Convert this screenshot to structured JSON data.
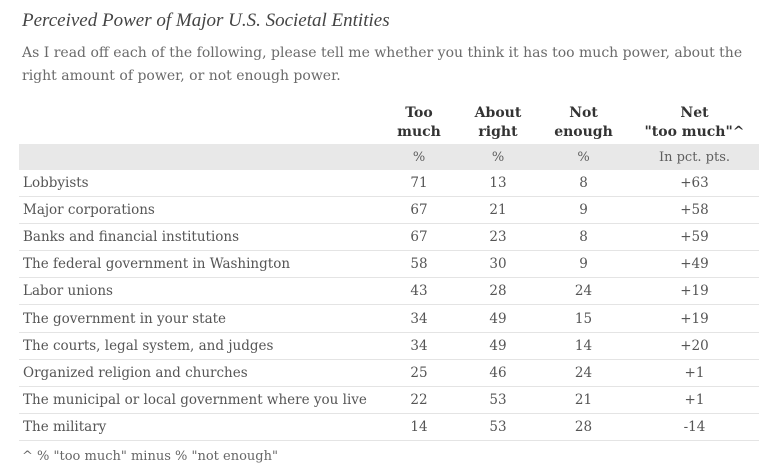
{
  "title": "Perceived Power of Major U.S. Societal Entities",
  "subtitle": "As I read off each of the following, please tell me whether you think it has too much power, about the right amount of power, or not enough power.",
  "columns": [
    {
      "line1": "Too",
      "line2": "much",
      "unit": "%"
    },
    {
      "line1": "About",
      "line2": "right",
      "unit": "%"
    },
    {
      "line1": "Not",
      "line2": "enough",
      "unit": "%"
    },
    {
      "line1": "Net",
      "line2": "\"too much\"^",
      "unit": "In pct. pts."
    }
  ],
  "rows": [
    {
      "entity": "Lobbyists",
      "too_much": "71",
      "about_right": "13",
      "not_enough": "8",
      "net": "+63"
    },
    {
      "entity": "Major corporations",
      "too_much": "67",
      "about_right": "21",
      "not_enough": "9",
      "net": "+58"
    },
    {
      "entity": "Banks and financial institutions",
      "too_much": "67",
      "about_right": "23",
      "not_enough": "8",
      "net": "+59"
    },
    {
      "entity": "The federal government in Washington",
      "too_much": "58",
      "about_right": "30",
      "not_enough": "9",
      "net": "+49"
    },
    {
      "entity": "Labor unions",
      "too_much": "43",
      "about_right": "28",
      "not_enough": "24",
      "net": "+19"
    },
    {
      "entity": "The government in your state",
      "too_much": "34",
      "about_right": "49",
      "not_enough": "15",
      "net": "+19"
    },
    {
      "entity": "The courts, legal system, and judges",
      "too_much": "34",
      "about_right": "49",
      "not_enough": "14",
      "net": "+20"
    },
    {
      "entity": "Organized religion and churches",
      "too_much": "25",
      "about_right": "46",
      "not_enough": "24",
      "net": "+1"
    },
    {
      "entity": "The municipal or local government where you live",
      "too_much": "22",
      "about_right": "53",
      "not_enough": "21",
      "net": "+1"
    },
    {
      "entity": "The military",
      "too_much": "14",
      "about_right": "53",
      "not_enough": "28",
      "net": "-14"
    }
  ],
  "footnote": "^ % \"too much\" minus % \"not enough\""
}
